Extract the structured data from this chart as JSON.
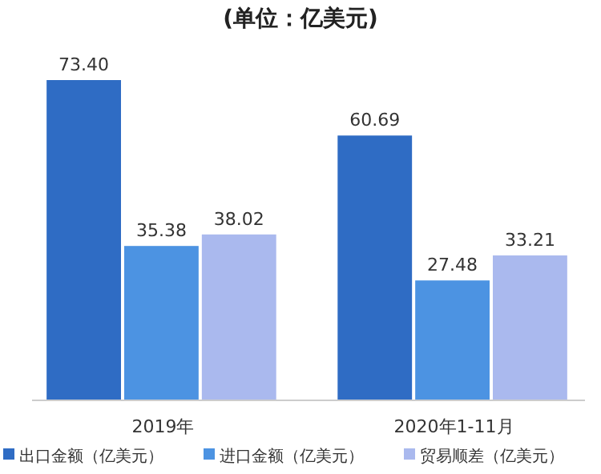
{
  "chart_data": {
    "type": "bar",
    "title": "(单位：亿美元)",
    "categories": [
      "2019年",
      "2020年1-11月"
    ],
    "series": [
      {
        "name": "出口金额（亿美元）",
        "color": "#2f6cc4",
        "values": [
          73.4,
          60.69
        ],
        "value_labels": [
          "73.40",
          "60.69"
        ]
      },
      {
        "name": "进口金额（亿美元）",
        "color": "#4c93e2",
        "values": [
          35.38,
          27.48
        ],
        "value_labels": [
          "35.38",
          "27.48"
        ]
      },
      {
        "name": "贸易顺差（亿美元）",
        "color": "#aab9ee",
        "values": [
          38.02,
          33.21
        ],
        "value_labels": [
          "38.02",
          "33.21"
        ]
      }
    ],
    "legend": "bottom"
  }
}
